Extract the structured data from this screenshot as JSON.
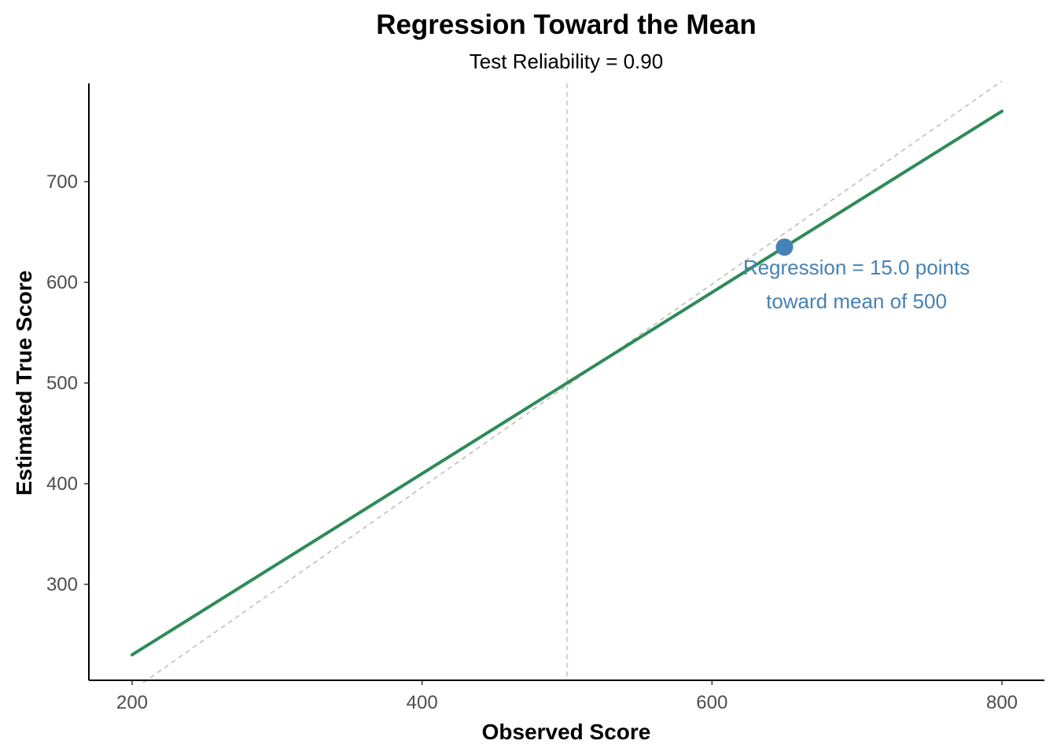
{
  "chart_data": {
    "type": "line",
    "title": "Regression Toward the Mean",
    "subtitle": "Test Reliability = 0.90",
    "xlabel": "Observed Score",
    "ylabel": "Estimated True Score",
    "xlim": [
      200,
      800
    ],
    "ylim": [
      200,
      800
    ],
    "x_ticks": [
      200,
      400,
      600,
      800
    ],
    "y_ticks": [
      300,
      400,
      500,
      600,
      700
    ],
    "mean": 500,
    "reliability": 0.9,
    "series": [
      {
        "x": [
          200,
          800
        ],
        "y": [
          230,
          770
        ],
        "color": "#2e8b57"
      }
    ],
    "identity_line": {
      "x": [
        200,
        800
      ],
      "y": [
        200,
        800
      ],
      "color": "#bbbbbb"
    },
    "highlight_point": {
      "x": 650,
      "y": 635,
      "color": "#4682b4"
    },
    "annotation": {
      "lines": [
        "Regression = 15.0 points",
        "toward mean of 500"
      ],
      "color": "#4682b4"
    },
    "grid": false
  },
  "colors": {
    "fit_line": "#2e8b57",
    "mean_line": "#a8d0c0",
    "identity_line": "#bbbbbb",
    "point": "#4682b4",
    "axis": "#000000",
    "tick_text": "#4d4d4d"
  }
}
